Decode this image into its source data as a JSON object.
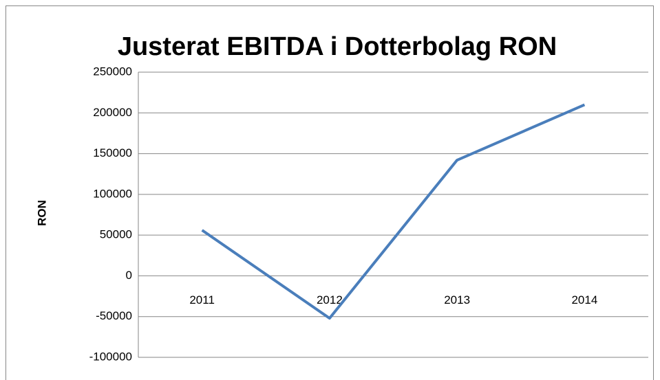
{
  "chart_data": {
    "type": "line",
    "title": "Justerat EBITDA i Dotterbolag RON",
    "y_label": "RON",
    "categories": [
      "2011",
      "2012",
      "2013",
      "2014"
    ],
    "series": [
      {
        "name": "RON",
        "color": "#4a7ebb",
        "values": [
          56000,
          -52000,
          142000,
          210000
        ]
      }
    ],
    "ylim": [
      -100000,
      250000
    ],
    "yticks": [
      -100000,
      -50000,
      0,
      50000,
      100000,
      150000,
      200000,
      250000
    ],
    "grid": true
  }
}
